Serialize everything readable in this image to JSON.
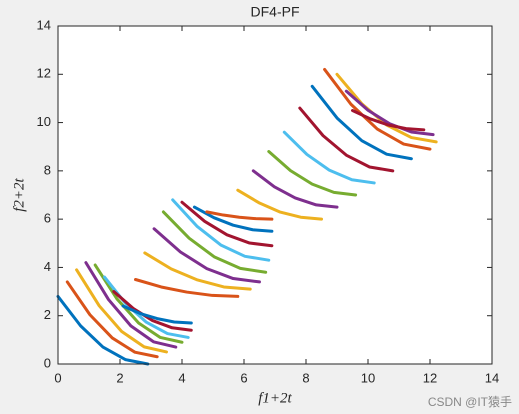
{
  "chart_data": {
    "type": "line",
    "title": "DF4-PF",
    "xlabel": "f1+2t",
    "ylabel": "f2+2t",
    "xlim": [
      0,
      14
    ],
    "ylim": [
      0,
      14
    ],
    "xticks": [
      0,
      2,
      4,
      6,
      8,
      10,
      12,
      14
    ],
    "yticks": [
      0,
      2,
      4,
      6,
      8,
      10,
      12,
      14
    ],
    "series": [
      {
        "color": "#0072BD",
        "x": [
          0,
          0.73,
          1.45,
          2.18,
          2.9
        ],
        "values": [
          2.8,
          1.58,
          0.7,
          0.18,
          0
        ]
      },
      {
        "color": "#D95319",
        "x": [
          0.3,
          1.03,
          1.75,
          2.48,
          3.2
        ],
        "values": [
          3.4,
          2.04,
          1.08,
          0.49,
          0.3
        ]
      },
      {
        "color": "#EDB120",
        "x": [
          0.6,
          1.33,
          2.05,
          2.78,
          3.5
        ],
        "values": [
          3.9,
          2.41,
          1.35,
          0.71,
          0.5
        ]
      },
      {
        "color": "#7E2F8E",
        "x": [
          0.9,
          1.63,
          2.35,
          3.08,
          3.8
        ],
        "values": [
          4.2,
          2.67,
          1.58,
          0.92,
          0.7
        ]
      },
      {
        "color": "#77AC30",
        "x": [
          1.2,
          1.9,
          2.6,
          3.3,
          4.0
        ],
        "values": [
          4.1,
          2.7,
          1.7,
          1.1,
          0.9
        ]
      },
      {
        "color": "#4DBEEE",
        "x": [
          1.5,
          2.18,
          2.85,
          3.53,
          4.2
        ],
        "values": [
          3.6,
          2.51,
          1.73,
          1.26,
          1.1
        ]
      },
      {
        "color": "#A2142F",
        "x": [
          1.8,
          2.43,
          3.05,
          3.68,
          4.3
        ],
        "values": [
          3.0,
          2.3,
          1.8,
          1.5,
          1.4
        ]
      },
      {
        "color": "#0072BD",
        "x": [
          2.1,
          2.65,
          3.2,
          3.75,
          4.3
        ],
        "values": [
          2.4,
          2.09,
          1.88,
          1.74,
          1.7
        ]
      },
      {
        "color": "#D95319",
        "x": [
          2.5,
          3.33,
          4.15,
          4.98,
          5.8
        ],
        "values": [
          3.5,
          3.19,
          2.98,
          2.84,
          2.8
        ]
      },
      {
        "color": "#EDB120",
        "x": [
          2.8,
          3.65,
          4.5,
          5.35,
          6.2
        ],
        "values": [
          4.6,
          3.94,
          3.48,
          3.19,
          3.1
        ]
      },
      {
        "color": "#7E2F8E",
        "x": [
          3.1,
          3.95,
          4.8,
          5.65,
          6.5
        ],
        "values": [
          5.6,
          4.64,
          3.95,
          3.54,
          3.4
        ]
      },
      {
        "color": "#77AC30",
        "x": [
          3.4,
          4.23,
          5.05,
          5.88,
          6.7
        ],
        "values": [
          6.3,
          5.21,
          4.43,
          3.96,
          3.8
        ]
      },
      {
        "color": "#4DBEEE",
        "x": [
          3.7,
          4.48,
          5.25,
          6.03,
          6.8
        ],
        "values": [
          6.8,
          5.71,
          4.93,
          4.46,
          4.3
        ]
      },
      {
        "color": "#A2142F",
        "x": [
          4.0,
          4.73,
          5.45,
          6.18,
          6.9
        ],
        "values": [
          6.7,
          5.91,
          5.35,
          5.01,
          4.9
        ]
      },
      {
        "color": "#0072BD",
        "x": [
          4.4,
          5.03,
          5.65,
          6.28,
          6.9
        ],
        "values": [
          6.5,
          6.06,
          5.75,
          5.56,
          5.5
        ]
      },
      {
        "color": "#D95319",
        "x": [
          4.8,
          5.33,
          5.85,
          6.38,
          6.9
        ],
        "values": [
          6.3,
          6.17,
          6.08,
          6.02,
          6.0
        ]
      },
      {
        "color": "#EDB120",
        "x": [
          5.8,
          6.48,
          7.15,
          7.83,
          8.5
        ],
        "values": [
          7.2,
          6.68,
          6.3,
          6.08,
          6.0
        ]
      },
      {
        "color": "#7E2F8E",
        "x": [
          6.3,
          6.98,
          7.65,
          8.33,
          9.0
        ],
        "values": [
          8.0,
          7.34,
          6.88,
          6.59,
          6.5
        ]
      },
      {
        "color": "#77AC30",
        "x": [
          6.8,
          7.5,
          8.2,
          8.9,
          9.6
        ],
        "values": [
          8.8,
          8.01,
          7.45,
          7.11,
          7.0
        ]
      },
      {
        "color": "#4DBEEE",
        "x": [
          7.3,
          8.03,
          8.75,
          9.48,
          10.2
        ],
        "values": [
          9.6,
          8.68,
          8.03,
          7.63,
          7.5
        ]
      },
      {
        "color": "#A2142F",
        "x": [
          7.8,
          8.55,
          9.3,
          10.05,
          10.8
        ],
        "values": [
          10.6,
          9.46,
          8.65,
          8.16,
          8.0
        ]
      },
      {
        "color": "#0072BD",
        "x": [
          8.2,
          9.0,
          9.8,
          10.6,
          11.4
        ],
        "values": [
          11.5,
          10.19,
          9.25,
          8.69,
          8.5
        ]
      },
      {
        "color": "#D95319",
        "x": [
          8.6,
          9.45,
          10.3,
          11.15,
          12.0
        ],
        "values": [
          12.2,
          10.76,
          9.73,
          9.11,
          8.9
        ]
      },
      {
        "color": "#EDB120",
        "x": [
          9.0,
          9.8,
          10.6,
          11.4,
          12.2
        ],
        "values": [
          12.0,
          10.78,
          9.9,
          9.38,
          9.2
        ]
      },
      {
        "color": "#7E2F8E",
        "x": [
          9.3,
          10.0,
          10.7,
          11.4,
          12.1
        ],
        "values": [
          11.3,
          10.51,
          9.95,
          9.61,
          9.5
        ]
      },
      {
        "color": "#A2142F",
        "x": [
          9.5,
          10.08,
          10.65,
          11.23,
          11.8
        ],
        "values": [
          10.5,
          10.15,
          9.9,
          9.75,
          9.7
        ]
      }
    ]
  },
  "watermark": "CSDN @IT猿手"
}
